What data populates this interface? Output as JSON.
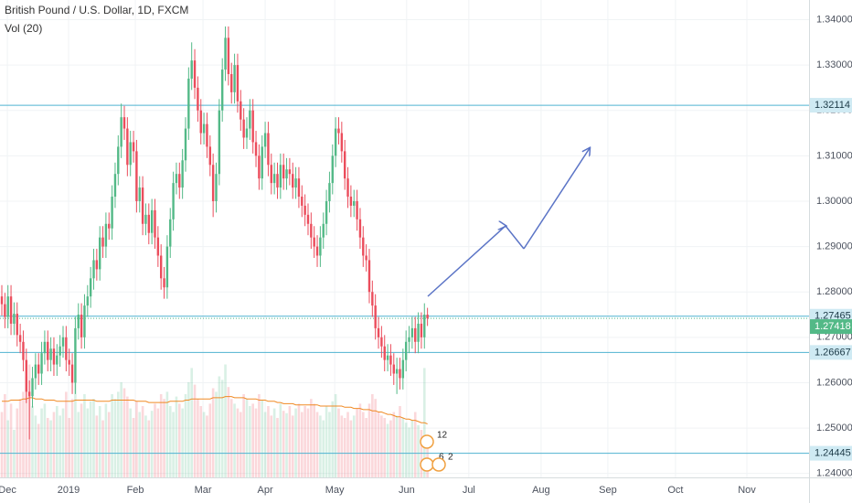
{
  "chart_data": {
    "type": "candlestick",
    "title": "British Pound / U.S. Dollar, 1D, FXCM",
    "volume_label": "Vol (20)",
    "open": [
      1.279,
      1.2773,
      1.2745,
      1.279,
      1.273,
      1.2752,
      1.2705,
      1.269,
      1.265,
      1.258,
      1.257,
      1.261,
      1.264,
      1.262,
      1.2665,
      1.269,
      1.265,
      1.2675,
      1.264,
      1.266,
      1.268,
      1.27,
      1.265,
      1.264,
      1.26,
      1.272,
      1.275,
      1.27,
      1.277,
      1.279,
      1.283,
      1.287,
      1.285,
      1.292,
      1.29,
      1.295,
      1.294,
      1.301,
      1.306,
      1.312,
      1.3185,
      1.316,
      1.308,
      1.313,
      1.311,
      1.3,
      1.303,
      1.295,
      1.297,
      1.293,
      1.298,
      1.292,
      1.288,
      1.283,
      1.281,
      1.29,
      1.296,
      1.304,
      1.306,
      1.303,
      1.309,
      1.316,
      1.327,
      1.331,
      1.325,
      1.32,
      1.315,
      1.317,
      1.312,
      1.308,
      1.3,
      1.306,
      1.32,
      1.329,
      1.336,
      1.328,
      1.324,
      1.33,
      1.322,
      1.318,
      1.314,
      1.316,
      1.32,
      1.313,
      1.31,
      1.305,
      1.312,
      1.315,
      1.308,
      1.304,
      1.306,
      1.303,
      1.308,
      1.305,
      1.307,
      1.306,
      1.303,
      1.305,
      1.301,
      1.299,
      1.297,
      1.295,
      1.292,
      1.29,
      1.288,
      1.292,
      1.295,
      1.3,
      1.304,
      1.31,
      1.316,
      1.315,
      1.311,
      1.305,
      1.301,
      1.299,
      1.3,
      1.296,
      1.292,
      1.288,
      1.287,
      1.28,
      1.277,
      1.272,
      1.27,
      1.268,
      1.265,
      1.266,
      1.264,
      1.262,
      1.263,
      1.261,
      1.265,
      1.269,
      1.27,
      1.272,
      1.269,
      1.273,
      1.27,
      1.275
    ],
    "high": [
      1.2815,
      1.2798,
      1.2815,
      1.2815,
      1.2777,
      1.2777,
      1.273,
      1.2715,
      1.2675,
      1.2605,
      1.2635,
      1.2665,
      1.2665,
      1.269,
      1.2715,
      1.2715,
      1.27,
      1.27,
      1.2685,
      1.2705,
      1.2725,
      1.2725,
      1.2675,
      1.2665,
      1.2745,
      1.2775,
      1.2775,
      1.2795,
      1.2815,
      1.2855,
      1.2895,
      1.2895,
      1.2945,
      1.2945,
      1.2975,
      1.2975,
      1.3035,
      1.3085,
      1.3145,
      1.3215,
      1.321,
      1.3185,
      1.3155,
      1.3155,
      1.3135,
      1.3055,
      1.3055,
      1.2995,
      1.2995,
      1.3005,
      1.3005,
      1.2945,
      1.2905,
      1.2855,
      1.2925,
      1.2985,
      1.3065,
      1.3085,
      1.3085,
      1.3115,
      1.3185,
      1.3295,
      1.335,
      1.3335,
      1.3275,
      1.3225,
      1.3195,
      1.3195,
      1.3145,
      1.3105,
      1.3085,
      1.3225,
      1.3315,
      1.3385,
      1.3385,
      1.3305,
      1.3325,
      1.3325,
      1.3245,
      1.3205,
      1.3185,
      1.3225,
      1.3225,
      1.3155,
      1.3125,
      1.3145,
      1.3175,
      1.3175,
      1.3105,
      1.3085,
      1.3085,
      1.3105,
      1.3105,
      1.3095,
      1.3095,
      1.3085,
      1.3075,
      1.3075,
      1.3035,
      1.3015,
      1.2995,
      1.2975,
      1.2945,
      1.2925,
      1.2945,
      1.2975,
      1.3025,
      1.3065,
      1.3125,
      1.3185,
      1.3185,
      1.3175,
      1.3135,
      1.3075,
      1.3035,
      1.3025,
      1.3025,
      1.2985,
      1.2945,
      1.2905,
      1.2895,
      1.2825,
      1.2795,
      1.2745,
      1.2725,
      1.2705,
      1.2685,
      1.2685,
      1.2665,
      1.2655,
      1.2655,
      1.2675,
      1.2715,
      1.2725,
      1.2745,
      1.2745,
      1.2755,
      1.2755,
      1.2775,
      1.2765
    ],
    "low": [
      1.2748,
      1.272,
      1.272,
      1.2705,
      1.2705,
      1.268,
      1.2665,
      1.2625,
      1.2555,
      1.2475,
      1.2545,
      1.2585,
      1.2595,
      1.2595,
      1.264,
      1.2625,
      1.2625,
      1.2615,
      1.2615,
      1.2635,
      1.2655,
      1.2625,
      1.2615,
      1.2575,
      1.2575,
      1.2695,
      1.2675,
      1.2675,
      1.2745,
      1.2765,
      1.2805,
      1.2825,
      1.2825,
      1.2875,
      1.2875,
      1.2915,
      1.2915,
      1.2985,
      1.3035,
      1.3095,
      1.3135,
      1.3055,
      1.3055,
      1.3085,
      1.2975,
      1.2975,
      1.2925,
      1.2925,
      1.2905,
      1.2905,
      1.2895,
      1.2855,
      1.2805,
      1.2785,
      1.2785,
      1.2875,
      1.2935,
      1.3015,
      1.3005,
      1.3005,
      1.3065,
      1.3135,
      1.3245,
      1.3225,
      1.3175,
      1.3125,
      1.3125,
      1.3095,
      1.3055,
      1.2965,
      1.2975,
      1.3035,
      1.3175,
      1.3265,
      1.3255,
      1.3215,
      1.3215,
      1.3195,
      1.3155,
      1.3115,
      1.3115,
      1.3135,
      1.3105,
      1.3075,
      1.3025,
      1.3025,
      1.3095,
      1.3055,
      1.3015,
      1.3015,
      1.3005,
      1.3005,
      1.3025,
      1.3025,
      1.3035,
      1.3005,
      1.3005,
      1.2985,
      1.2965,
      1.2945,
      1.2925,
      1.2895,
      1.2875,
      1.2855,
      1.2855,
      1.2895,
      1.2925,
      1.2975,
      1.3015,
      1.3075,
      1.3125,
      1.3085,
      1.3025,
      1.2985,
      1.2965,
      1.2965,
      1.2935,
      1.2895,
      1.2855,
      1.2845,
      1.2775,
      1.2745,
      1.2695,
      1.2675,
      1.2655,
      1.2625,
      1.2625,
      1.2615,
      1.2595,
      1.2575,
      1.2585,
      1.2585,
      1.2625,
      1.2665,
      1.2675,
      1.2665,
      1.2665,
      1.2675,
      1.2675,
      1.2725
    ],
    "close": [
      1.2773,
      1.2745,
      1.279,
      1.273,
      1.2752,
      1.2705,
      1.269,
      1.265,
      1.258,
      1.257,
      1.261,
      1.264,
      1.262,
      1.2665,
      1.269,
      1.265,
      1.2675,
      1.264,
      1.266,
      1.268,
      1.27,
      1.265,
      1.264,
      1.26,
      1.272,
      1.275,
      1.27,
      1.277,
      1.279,
      1.283,
      1.287,
      1.285,
      1.292,
      1.29,
      1.295,
      1.294,
      1.301,
      1.306,
      1.312,
      1.3185,
      1.316,
      1.308,
      1.313,
      1.311,
      1.3,
      1.303,
      1.295,
      1.297,
      1.293,
      1.298,
      1.292,
      1.288,
      1.283,
      1.281,
      1.29,
      1.296,
      1.304,
      1.306,
      1.303,
      1.309,
      1.316,
      1.327,
      1.331,
      1.325,
      1.32,
      1.315,
      1.317,
      1.312,
      1.308,
      1.3,
      1.306,
      1.32,
      1.329,
      1.336,
      1.328,
      1.324,
      1.33,
      1.322,
      1.318,
      1.314,
      1.316,
      1.32,
      1.313,
      1.31,
      1.305,
      1.312,
      1.315,
      1.308,
      1.304,
      1.306,
      1.303,
      1.308,
      1.305,
      1.307,
      1.306,
      1.303,
      1.305,
      1.301,
      1.299,
      1.297,
      1.295,
      1.292,
      1.29,
      1.288,
      1.292,
      1.295,
      1.3,
      1.304,
      1.31,
      1.316,
      1.315,
      1.311,
      1.305,
      1.301,
      1.299,
      1.3,
      1.296,
      1.292,
      1.288,
      1.287,
      1.28,
      1.277,
      1.272,
      1.27,
      1.268,
      1.265,
      1.266,
      1.264,
      1.262,
      1.263,
      1.261,
      1.265,
      1.269,
      1.27,
      1.272,
      1.269,
      1.273,
      1.27,
      1.275,
      1.27418
    ],
    "volume": [
      55,
      70,
      48,
      62,
      40,
      58,
      66,
      72,
      85,
      95,
      60,
      52,
      45,
      58,
      62,
      50,
      48,
      55,
      60,
      52,
      58,
      72,
      50,
      66,
      80,
      55,
      62,
      70,
      58,
      64,
      66,
      52,
      60,
      48,
      62,
      55,
      70,
      66,
      72,
      80,
      75,
      68,
      58,
      50,
      64,
      55,
      60,
      52,
      48,
      56,
      62,
      58,
      70,
      66,
      72,
      60,
      55,
      68,
      62,
      58,
      70,
      80,
      92,
      78,
      66,
      60,
      55,
      52,
      62,
      75,
      72,
      85,
      82,
      95,
      76,
      66,
      62,
      58,
      55,
      70,
      66,
      60,
      62,
      58,
      70,
      65,
      55,
      60,
      52,
      58,
      50,
      62,
      56,
      54,
      60,
      52,
      58,
      62,
      55,
      60,
      58,
      66,
      62,
      55,
      52,
      48,
      60,
      55,
      64,
      70,
      58,
      52,
      50,
      55,
      48,
      52,
      58,
      62,
      55,
      50,
      62,
      70,
      66,
      55,
      52,
      50,
      45,
      48,
      55,
      52,
      60,
      50,
      46,
      42,
      48,
      55,
      44,
      40,
      92,
      30
    ],
    "volume_ma": [
      64,
      64,
      64,
      65,
      65,
      65,
      65,
      66,
      66,
      67,
      67,
      66,
      66,
      66,
      65,
      65,
      65,
      65,
      64,
      64,
      64,
      64,
      64,
      64,
      65,
      65,
      65,
      65,
      65,
      65,
      65,
      64,
      64,
      64,
      64,
      64,
      65,
      65,
      65,
      65,
      65,
      65,
      65,
      65,
      64,
      64,
      64,
      64,
      63,
      63,
      63,
      63,
      63,
      63,
      63,
      64,
      64,
      64,
      64,
      64,
      65,
      65,
      66,
      66,
      66,
      66,
      66,
      66,
      66,
      67,
      67,
      67,
      67,
      68,
      68,
      68,
      67,
      67,
      67,
      67,
      66,
      66,
      66,
      66,
      65,
      65,
      65,
      64,
      64,
      64,
      63,
      63,
      62,
      62,
      62,
      62,
      61,
      61,
      61,
      61,
      61,
      61,
      61,
      61,
      60,
      60,
      60,
      60,
      60,
      60,
      60,
      60,
      59,
      59,
      59,
      58,
      58,
      58,
      57,
      57,
      57,
      56,
      56,
      55,
      55,
      54,
      53,
      53,
      52,
      51,
      51,
      50,
      49,
      49,
      48,
      48,
      47,
      46,
      46,
      45
    ],
    "up_color": "#53b987",
    "down_color": "#eb4d5c",
    "volume_ma_color": "#f08a24",
    "level_color": "#4fb3d1",
    "last_color": "#53b987",
    "grid": true,
    "xlim": [
      -0.6,
      263.6
    ],
    "xticks": [
      {
        "value": 1.8,
        "label": "Dec"
      },
      {
        "value": 21.8,
        "label": "2019"
      },
      {
        "value": 43.6,
        "label": "Feb"
      },
      {
        "value": 65.7,
        "label": "Mar"
      },
      {
        "value": 86,
        "label": "Apr"
      },
      {
        "value": 108.7,
        "label": "May"
      },
      {
        "value": 132.2,
        "label": "Jun"
      },
      {
        "value": 152.5,
        "label": "Jul"
      },
      {
        "value": 176.1,
        "label": "Aug"
      },
      {
        "value": 197.9,
        "label": "Sep"
      },
      {
        "value": 220,
        "label": "Oct"
      },
      {
        "value": 243.3,
        "label": "Nov"
      }
    ],
    "ylim": [
      1.23913,
      1.34433
    ],
    "yticks": [
      {
        "value": 1.24,
        "label": "1.24000"
      },
      {
        "value": 1.25,
        "label": "1.25000"
      },
      {
        "value": 1.26,
        "label": "1.26000"
      },
      {
        "value": 1.27,
        "label": "1.27000"
      },
      {
        "value": 1.28,
        "label": "1.28000"
      },
      {
        "value": 1.29,
        "label": "1.29000"
      },
      {
        "value": 1.3,
        "label": "1.30000"
      },
      {
        "value": 1.31,
        "label": "1.31000"
      },
      {
        "value": 1.32,
        "label": "1.32000"
      },
      {
        "value": 1.33,
        "label": "1.33000"
      },
      {
        "value": 1.34,
        "label": "1.34000"
      }
    ],
    "levels": [
      1.32114,
      1.27465,
      1.26667,
      1.24445
    ],
    "last": 1.27418,
    "events": [
      12,
      6,
      2
    ]
  }
}
